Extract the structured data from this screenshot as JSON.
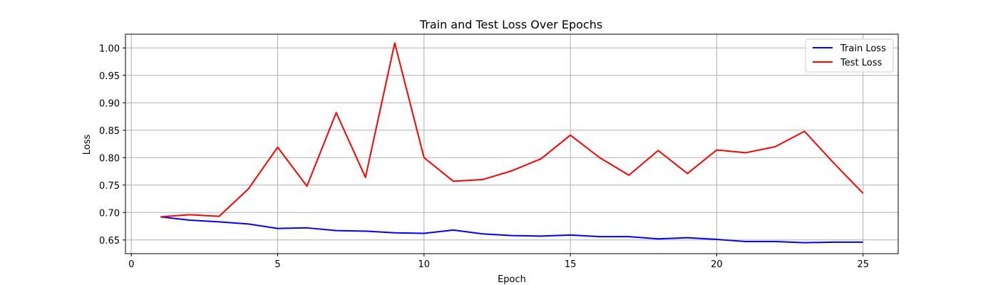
{
  "chart_data": {
    "type": "line",
    "title": "Train and Test Loss Over Epochs",
    "xlabel": "Epoch",
    "ylabel": "Loss",
    "xlim": [
      -0.2,
      26.2
    ],
    "ylim": [
      0.625,
      1.025
    ],
    "xticks": [
      0,
      5,
      10,
      15,
      20,
      25
    ],
    "yticks": [
      0.65,
      0.7,
      0.75,
      0.8,
      0.85,
      0.9,
      0.95,
      1.0
    ],
    "ytick_labels": [
      "0.65",
      "0.70",
      "0.75",
      "0.80",
      "0.85",
      "0.90",
      "0.95",
      "1.00"
    ],
    "grid": true,
    "legend_position": "top-right",
    "x": [
      1,
      2,
      3,
      4,
      5,
      6,
      7,
      8,
      9,
      10,
      11,
      12,
      13,
      14,
      15,
      16,
      17,
      18,
      19,
      20,
      21,
      22,
      23,
      24,
      25
    ],
    "series": [
      {
        "name": "Train Loss",
        "color": "#0000ff",
        "values": [
          0.692,
          0.686,
          0.683,
          0.679,
          0.671,
          0.672,
          0.667,
          0.666,
          0.663,
          0.662,
          0.668,
          0.661,
          0.658,
          0.657,
          0.659,
          0.656,
          0.656,
          0.652,
          0.654,
          0.651,
          0.647,
          0.647,
          0.645,
          0.646,
          0.646
        ]
      },
      {
        "name": "Test Loss",
        "color": "#ff0000",
        "values": [
          0.692,
          0.696,
          0.693,
          0.743,
          0.819,
          0.748,
          0.882,
          0.764,
          1.009,
          0.8,
          0.757,
          0.76,
          0.776,
          0.798,
          0.841,
          0.8,
          0.768,
          0.813,
          0.771,
          0.814,
          0.809,
          0.82,
          0.848,
          0.79,
          0.735
        ]
      }
    ]
  }
}
